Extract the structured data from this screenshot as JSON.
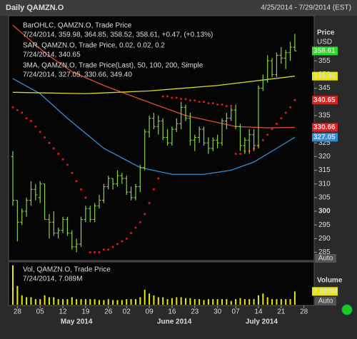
{
  "header": {
    "title": "Daily QAMZN.O",
    "range": "4/25/2014 - 7/29/2014 (EST)"
  },
  "chart_data": {
    "type": "ohlc",
    "legend": [
      {
        "text": "BarOHLC, QAMZN.O, Trade Price",
        "color": "#8fe05a"
      },
      {
        "text": "7/24/2014, 359.98, 364.85, 358.52, 358.61, +0.47, (+0.13%)",
        "color": "#8fe05a"
      },
      {
        "text": "SAR, QAMZN.O, Trade Price, 0.02, 0.02, 0.2",
        "color": "#e03a3a"
      },
      {
        "text": "7/24/2014, 340.65",
        "color": "#e03a3a"
      },
      {
        "text": "3MA, QAMZN.O, Trade Price(Last), 50, 100, 200, Simple",
        "color": "#3aa0e8"
      },
      {
        "text": "7/24/2014, 327.05, 330.66, 349.40",
        "color": "#3aa0e8"
      }
    ],
    "price_axis": {
      "title": "Price",
      "unit": "USD",
      "bold_tick": 300
    },
    "xlim": [
      -0.94,
      66.25
    ],
    "ylim": [
      282,
      371.5
    ],
    "yticks": [
      285,
      290,
      295,
      300,
      305,
      310,
      315,
      320,
      325,
      330,
      335,
      340,
      345,
      350,
      355
    ],
    "xticks": [
      {
        "value": 1,
        "label": "28"
      },
      {
        "value": 6,
        "label": "05"
      },
      {
        "value": 11,
        "label": "12"
      },
      {
        "value": 16,
        "label": "19"
      },
      {
        "value": 21,
        "label": "26"
      },
      {
        "value": 25,
        "label": "02"
      },
      {
        "value": 30,
        "label": "09"
      },
      {
        "value": 35,
        "label": "16"
      },
      {
        "value": 40,
        "label": "23"
      },
      {
        "value": 45,
        "label": "30"
      },
      {
        "value": 49,
        "label": "07"
      },
      {
        "value": 54,
        "label": "14"
      },
      {
        "value": 59,
        "label": "21"
      },
      {
        "value": 64,
        "label": "28"
      }
    ],
    "months": [
      {
        "value": 14,
        "label": "May 2014"
      },
      {
        "value": 35.5,
        "label": "June 2014"
      },
      {
        "value": 54.7,
        "label": "July 2014"
      }
    ],
    "ohlc": {
      "color": "#8ad04a",
      "open": [
        320,
        304,
        296,
        300,
        304,
        308,
        305,
        310,
        297,
        296,
        292,
        293,
        297,
        292,
        287,
        288,
        297,
        301,
        297,
        302,
        304,
        309,
        312,
        310,
        313,
        312,
        307,
        305,
        309,
        316,
        329,
        334,
        331,
        333,
        327,
        325,
        330,
        332,
        338,
        334,
        326,
        327,
        330,
        325,
        323,
        326,
        325,
        333,
        334,
        337,
        331,
        324,
        326,
        328,
        324,
        345,
        348,
        355,
        350,
        357,
        356,
        358,
        359.98
      ],
      "high": [
        322,
        304,
        301,
        305,
        311,
        310,
        311,
        310,
        299,
        300,
        294,
        298,
        298,
        293,
        290,
        298,
        302,
        302,
        303,
        306,
        310,
        313,
        312,
        315,
        314,
        313,
        309,
        310,
        317,
        330,
        335,
        336,
        335,
        334,
        330,
        331,
        334,
        340,
        339,
        336,
        328,
        331,
        331,
        327,
        327,
        328,
        334,
        336,
        338,
        339,
        332,
        327,
        330,
        330,
        346,
        350,
        357,
        356,
        358,
        360,
        359,
        362,
        364.85
      ],
      "low": [
        302,
        289,
        295,
        298,
        302,
        304,
        303,
        297,
        290,
        291,
        290,
        292,
        291,
        286,
        285,
        287,
        296,
        296,
        296,
        301,
        303,
        308,
        308,
        309,
        310,
        306,
        304,
        304,
        307,
        315,
        327,
        330,
        328,
        326,
        324,
        324,
        329,
        330,
        333,
        324,
        322,
        325,
        324,
        321,
        322,
        323,
        324,
        330,
        333,
        330,
        322,
        321,
        321,
        322,
        323,
        344,
        347,
        349,
        349,
        354,
        352,
        355,
        358.52
      ],
      "close": [
        304,
        296,
        300,
        304,
        308,
        306,
        310,
        297,
        296,
        292,
        293,
        297,
        292,
        287,
        288,
        297,
        301,
        297,
        302,
        304,
        309,
        312,
        310,
        313,
        312,
        307,
        305,
        309,
        316,
        329,
        334,
        331,
        333,
        327,
        325,
        330,
        332,
        338,
        334,
        326,
        327,
        330,
        325,
        323,
        326,
        325,
        333,
        334,
        337,
        331,
        324,
        326,
        328,
        324,
        345,
        348,
        355,
        350,
        357,
        356,
        358,
        360,
        358.61
      ]
    },
    "sar": {
      "color": "#e01818",
      "values": [
        338,
        337,
        336,
        334,
        333,
        331,
        329,
        327,
        325,
        323,
        321,
        319,
        317,
        314,
        311,
        308,
        305,
        285,
        285,
        285,
        286,
        286,
        287,
        288,
        289,
        290,
        292,
        294,
        296,
        299,
        303,
        308,
        312,
        342,
        342,
        341.5,
        341.5,
        341,
        341,
        340.5,
        340.5,
        340,
        340,
        339.5,
        339.5,
        339,
        339,
        338.5,
        338.5,
        321,
        321,
        322,
        322,
        323,
        324,
        326,
        328,
        330,
        332,
        334,
        336,
        338,
        340.65
      ]
    },
    "ma": [
      {
        "color": "#2e8fd8",
        "x": [
          0,
          6,
          12,
          20,
          28,
          35,
          42,
          48,
          53,
          58,
          62
        ],
        "values": [
          348.5,
          343,
          334,
          323,
          316,
          313.5,
          313.5,
          315,
          318,
          323,
          327.05
        ]
      },
      {
        "color": "#e0502a",
        "x": [
          0,
          7,
          13,
          20,
          28,
          38,
          49,
          56,
          62
        ],
        "values": [
          368,
          358,
          351,
          346,
          341,
          335,
          331,
          330.5,
          330.66
        ]
      },
      {
        "color": "#d8d820",
        "x": [
          0,
          16,
          30,
          45,
          62
        ],
        "values": [
          343.5,
          343,
          344,
          346,
          349.4
        ]
      }
    ],
    "tags": [
      {
        "value": 358.61,
        "color": "#2fd82f",
        "text_color": "#000"
      },
      {
        "value": 349.4,
        "label": "349.40",
        "color": "#e8e800",
        "text_color": "#000"
      },
      {
        "value": 340.65,
        "color": "#e02020",
        "text_color": "#300"
      },
      {
        "value": 330.66,
        "color": "#e02020",
        "text_color": "#300"
      },
      {
        "value": 327.05,
        "color": "#2e8fd8",
        "text_color": "#fff"
      }
    ],
    "volume": {
      "legend": [
        "Vol, QAMZN.O, Trade Price",
        "7/24/2014, 7.089M"
      ],
      "title": "Volume",
      "color": "#e8e800",
      "ylim": [
        0,
        22
      ],
      "values": [
        21,
        10,
        5,
        4,
        4,
        3,
        3,
        5,
        4,
        4,
        3,
        3,
        3,
        4,
        3,
        3,
        3,
        3,
        3,
        2.5,
        2.5,
        3,
        2.5,
        2.5,
        2.5,
        3,
        3,
        3,
        4,
        8,
        6,
        5,
        4,
        4,
        3,
        3.5,
        4,
        4,
        3.5,
        3.5,
        3,
        3,
        2.5,
        3,
        3,
        3,
        3,
        3,
        2,
        3,
        3.5,
        3,
        3,
        3,
        5,
        6,
        4,
        3,
        3,
        3,
        3,
        3,
        7.089
      ],
      "tag": {
        "value": 7.089,
        "label": "7.089M"
      }
    },
    "buttons": [
      "Auto",
      "Auto"
    ]
  }
}
